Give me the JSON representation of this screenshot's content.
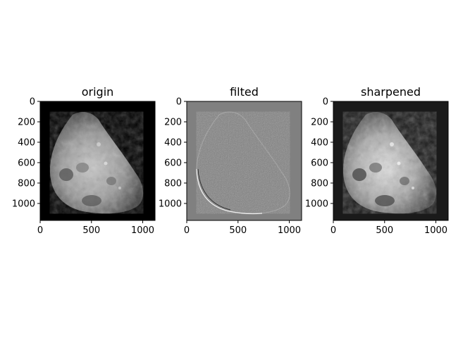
{
  "figure": {
    "panels": [
      {
        "title": "origin",
        "image": "moon-grayscale-original",
        "background": "#000000",
        "xticks": [
          "0",
          "500",
          "1000"
        ],
        "yticks": [
          "0",
          "200",
          "400",
          "600",
          "800",
          "1000"
        ]
      },
      {
        "title": "filted",
        "image": "moon-high-pass-filtered",
        "background": "#808080",
        "xticks": [
          "0",
          "500",
          "1000"
        ],
        "yticks": [
          "0",
          "200",
          "400",
          "600",
          "800",
          "1000"
        ]
      },
      {
        "title": "sharpened",
        "image": "moon-sharpened",
        "background": "#1a1a1a",
        "xticks": [
          "0",
          "500",
          "1000"
        ],
        "yticks": [
          "0",
          "200",
          "400",
          "600",
          "800",
          "1000"
        ]
      }
    ]
  }
}
